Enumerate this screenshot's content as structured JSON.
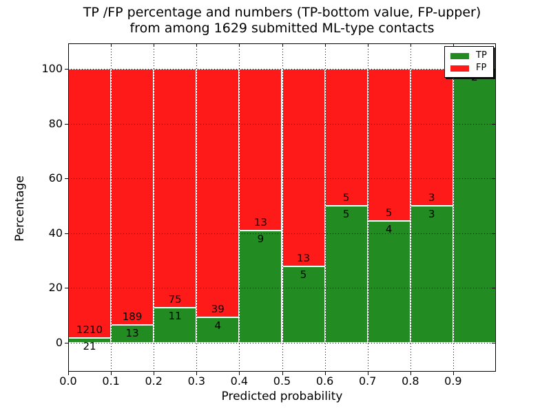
{
  "figure": {
    "title_line1": "TP /FP percentage and numbers (TP-bottom value, FP-upper)",
    "title_line2": "from among 1629 submitted ML-type contacts"
  },
  "chart_data": {
    "type": "bar",
    "subtype": "stacked-percentage-histogram",
    "title": "TP /FP percentage and numbers (TP-bottom value, FP-upper) from among 1629 submitted ML-type contacts",
    "xlabel": "Predicted probability",
    "ylabel": "Percentage",
    "total_contacts": 1629,
    "bin_left_edges": [
      0.0,
      0.1,
      0.2,
      0.3,
      0.4,
      0.5,
      0.6,
      0.7,
      0.8,
      0.9
    ],
    "bin_width": 0.1,
    "series": [
      {
        "name": "TP",
        "color": "#228b22",
        "counts": [
          21,
          13,
          11,
          4,
          9,
          5,
          5,
          4,
          3,
          2
        ],
        "labels_shown": [
          "21",
          "13",
          "11",
          "4",
          "9",
          "5",
          "5",
          "4",
          "3",
          "2"
        ]
      },
      {
        "name": "FP",
        "color": "#ff1a1a",
        "counts": [
          1210,
          189,
          75,
          39,
          13,
          13,
          5,
          5,
          3,
          0
        ],
        "labels_shown": [
          "1210",
          "189",
          "75",
          "39",
          "13",
          "13",
          "5",
          "5",
          "3",
          ""
        ]
      }
    ],
    "tp_percent_of_bin": [
      1.7,
      6.4,
      12.8,
      9.3,
      40.9,
      27.8,
      50.0,
      44.4,
      50.0,
      100.0
    ],
    "x_tick_labels": [
      "0.0",
      "0.1",
      "0.2",
      "0.3",
      "0.4",
      "0.5",
      "0.6",
      "0.7",
      "0.8",
      "0.9"
    ],
    "y_tick_values": [
      0,
      20,
      40,
      60,
      80,
      100
    ],
    "xlim": [
      0.0,
      1.0
    ],
    "ylim": [
      -11,
      109
    ],
    "grid": "dotted black, horizontal and vertical, drawn above bars",
    "bar_edge_color": "#ffffff",
    "legend": {
      "position": "upper right",
      "entries": [
        {
          "label": "TP",
          "color": "#228b22"
        },
        {
          "label": "FP",
          "color": "#ff1a1a"
        }
      ]
    }
  }
}
